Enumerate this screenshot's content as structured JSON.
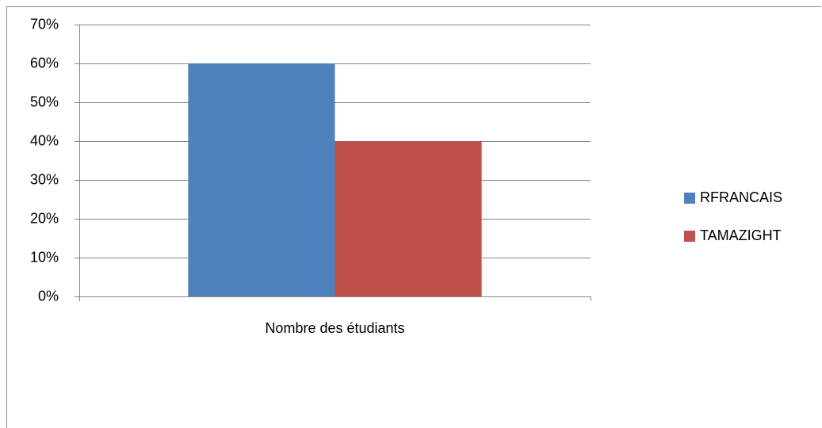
{
  "chart_data": {
    "type": "bar",
    "categories": [
      "Nombre des étudiants"
    ],
    "series": [
      {
        "name": "RFRANCAIS",
        "color": "#4f81bd",
        "values": [
          60
        ]
      },
      {
        "name": "TAMAZIGHT",
        "color": "#c0504d",
        "values": [
          40
        ]
      }
    ],
    "ylim": [
      0,
      70
    ],
    "yticks": [
      {
        "value": 0,
        "label": "0%"
      },
      {
        "value": 10,
        "label": "10%"
      },
      {
        "value": 20,
        "label": "20%"
      },
      {
        "value": 30,
        "label": "30%"
      },
      {
        "value": 40,
        "label": "40%"
      },
      {
        "value": 50,
        "label": "50%"
      },
      {
        "value": 60,
        "label": "60%"
      },
      {
        "value": 70,
        "label": "70%"
      }
    ],
    "grid": true,
    "legend": "right"
  }
}
